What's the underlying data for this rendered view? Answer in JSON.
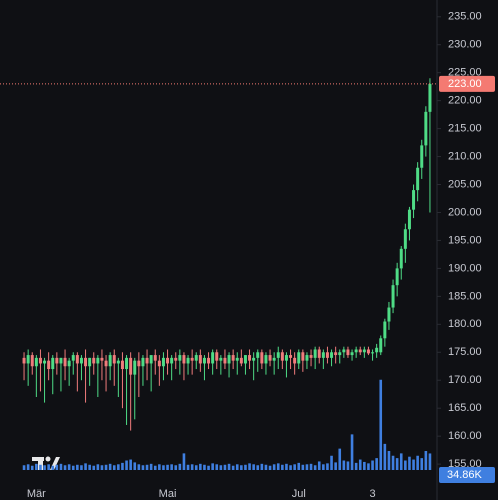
{
  "chart_data": {
    "type": "candlestick",
    "categories": [
      null,
      null,
      null,
      "Mär",
      null,
      null,
      null,
      null,
      null,
      null,
      null,
      null,
      null,
      null,
      null,
      null,
      null,
      null,
      null,
      null,
      null,
      null,
      null,
      null,
      null,
      null,
      null,
      null,
      null,
      null,
      null,
      null,
      null,
      null,
      null,
      "Mai",
      null,
      null,
      null,
      null,
      null,
      null,
      null,
      null,
      null,
      null,
      null,
      null,
      null,
      null,
      null,
      null,
      null,
      null,
      null,
      null,
      null,
      null,
      null,
      null,
      null,
      null,
      null,
      null,
      null,
      null,
      null,
      "Jul",
      null,
      null,
      null,
      null,
      null,
      null,
      null,
      null,
      null,
      null,
      null,
      null,
      null,
      null,
      null,
      null,
      null,
      "3",
      null,
      null,
      null,
      null,
      null,
      null,
      null,
      null,
      null,
      null,
      null,
      null,
      null,
      null
    ],
    "ohlcv": [
      [
        174,
        175,
        170,
        173,
        10
      ],
      [
        173,
        175.5,
        169,
        174.5,
        12
      ],
      [
        174.5,
        175,
        171,
        172.5,
        9
      ],
      [
        172.5,
        174.5,
        167,
        174,
        13
      ],
      [
        174,
        175.5,
        168,
        173,
        11
      ],
      [
        173,
        174,
        166,
        173.5,
        10
      ],
      [
        173.5,
        175,
        170,
        172,
        12
      ],
      [
        172,
        174.5,
        167.5,
        174,
        9
      ],
      [
        174,
        175,
        171,
        173,
        11
      ],
      [
        173,
        174,
        168,
        174,
        13
      ],
      [
        174,
        175.5,
        170,
        172.5,
        10
      ],
      [
        172.5,
        174,
        169,
        173.5,
        12
      ],
      [
        173.5,
        175,
        171,
        174.5,
        9
      ],
      [
        174.5,
        175,
        168,
        173,
        11
      ],
      [
        173,
        174.5,
        170,
        174,
        10
      ],
      [
        174,
        175.5,
        166,
        172.5,
        14
      ],
      [
        172.5,
        174,
        169,
        174,
        11
      ],
      [
        174,
        175,
        171,
        173,
        9
      ],
      [
        173,
        174.5,
        167,
        174,
        12
      ],
      [
        174,
        175.5,
        170,
        173.5,
        10
      ],
      [
        173.5,
        174.5,
        168,
        172.5,
        11
      ],
      [
        172.5,
        175,
        170,
        174.5,
        13
      ],
      [
        174.5,
        175.5,
        169,
        173,
        10
      ],
      [
        173,
        174,
        167,
        173.5,
        12
      ],
      [
        173.5,
        175,
        165,
        172,
        15
      ],
      [
        172,
        174.5,
        162,
        174,
        20
      ],
      [
        174,
        175,
        161,
        171,
        22
      ],
      [
        171,
        174,
        163,
        173.5,
        16
      ],
      [
        173.5,
        175,
        167,
        172.5,
        12
      ],
      [
        172.5,
        174.5,
        169,
        174,
        10
      ],
      [
        174,
        175.5,
        170,
        173,
        11
      ],
      [
        173,
        174,
        168,
        174.5,
        13
      ],
      [
        174.5,
        175.5,
        171,
        173.5,
        9
      ],
      [
        173.5,
        174.5,
        169,
        172.5,
        12
      ],
      [
        172.5,
        175,
        170,
        174,
        10
      ],
      [
        174,
        175.5,
        171,
        173,
        11
      ],
      [
        173,
        174.5,
        170,
        174,
        12
      ],
      [
        174,
        175,
        172,
        173.5,
        10
      ],
      [
        173.5,
        175.5,
        171,
        174.5,
        13
      ],
      [
        174.5,
        175,
        170,
        173,
        35
      ],
      [
        173,
        174.5,
        171,
        174,
        11
      ],
      [
        174,
        175.5,
        171,
        173.5,
        12
      ],
      [
        173.5,
        175,
        172,
        174.5,
        10
      ],
      [
        174.5,
        175.5,
        171.5,
        173,
        13
      ],
      [
        173,
        174.5,
        170,
        174,
        11
      ],
      [
        174,
        175,
        172,
        173,
        9
      ],
      [
        173,
        175.5,
        171,
        175,
        14
      ],
      [
        175,
        175.5,
        172,
        173.5,
        12
      ],
      [
        173.5,
        174.5,
        171,
        174,
        10
      ],
      [
        174,
        175.5,
        172,
        173,
        11
      ],
      [
        173,
        175,
        170.5,
        174.5,
        13
      ],
      [
        174.5,
        175.5,
        172,
        173.5,
        9
      ],
      [
        173.5,
        175,
        171,
        174,
        12
      ],
      [
        174,
        175.5,
        172.5,
        173,
        10
      ],
      [
        173,
        174.5,
        171,
        174.5,
        11
      ],
      [
        174.5,
        175.5,
        172,
        173.5,
        14
      ],
      [
        173.5,
        175,
        170,
        174,
        12
      ],
      [
        174,
        175.5,
        171.5,
        175,
        10
      ],
      [
        175,
        175.5,
        172,
        173,
        13
      ],
      [
        173,
        175,
        171,
        174.5,
        11
      ],
      [
        174.5,
        175.5,
        172.5,
        173.5,
        9
      ],
      [
        173.5,
        175,
        171,
        174,
        12
      ],
      [
        174,
        176,
        172,
        175,
        14
      ],
      [
        175,
        175.5,
        172,
        173.5,
        11
      ],
      [
        173.5,
        175,
        170.5,
        174.5,
        13
      ],
      [
        174.5,
        175.5,
        172,
        174,
        10
      ],
      [
        174,
        175,
        171,
        173,
        12
      ],
      [
        173,
        175.5,
        172,
        175,
        15
      ],
      [
        175,
        175.5,
        171.5,
        173.5,
        11
      ],
      [
        173.5,
        175,
        172,
        174.5,
        12
      ],
      [
        174.5,
        175.5,
        172.5,
        174,
        13
      ],
      [
        174,
        176,
        172,
        175.5,
        10
      ],
      [
        175.5,
        176,
        173,
        174,
        18
      ],
      [
        174,
        175.5,
        172,
        175,
        12
      ],
      [
        175,
        176,
        173,
        174,
        14
      ],
      [
        174,
        175.5,
        172.5,
        175,
        30
      ],
      [
        175,
        176,
        173,
        174.5,
        16
      ],
      [
        174.5,
        175.5,
        173,
        175,
        45
      ],
      [
        175,
        176,
        174,
        175.5,
        20
      ],
      [
        175.5,
        176,
        174,
        174.5,
        18
      ],
      [
        174.5,
        175.5,
        173.5,
        175,
        75
      ],
      [
        175,
        176,
        174,
        175.5,
        15
      ],
      [
        175.5,
        176,
        174.5,
        175,
        22
      ],
      [
        175,
        176,
        174,
        175.5,
        17
      ],
      [
        175.5,
        176,
        174.5,
        174.8,
        14
      ],
      [
        174.8,
        175.5,
        173.5,
        175,
        20
      ],
      [
        175,
        176.5,
        174,
        175.8,
        25
      ],
      [
        175,
        178,
        174.5,
        177.5,
        190
      ],
      [
        177.5,
        181,
        176,
        180.5,
        55
      ],
      [
        180.5,
        184,
        179,
        183,
        40
      ],
      [
        183,
        188,
        182,
        187,
        30
      ],
      [
        187,
        191,
        185,
        190,
        25
      ],
      [
        190,
        194,
        188,
        193.5,
        35
      ],
      [
        193.5,
        198,
        191,
        197,
        20
      ],
      [
        197,
        201,
        195,
        200.5,
        28
      ],
      [
        200.5,
        205,
        199,
        204,
        22
      ],
      [
        204,
        209,
        202,
        208,
        30
      ],
      [
        208,
        213,
        206,
        212,
        25
      ],
      [
        212,
        219,
        210,
        218,
        40
      ],
      [
        218,
        224,
        200,
        223,
        34.86
      ]
    ],
    "ylim": [
      151.8,
      238.0
    ],
    "yticks": [
      {
        "value": 155,
        "label": "155.00"
      },
      {
        "value": 160,
        "label": "160.00"
      },
      {
        "value": 165,
        "label": "165.00"
      },
      {
        "value": 170,
        "label": "170.00"
      },
      {
        "value": 175,
        "label": "175.00"
      },
      {
        "value": 180,
        "label": "180.00"
      },
      {
        "value": 185,
        "label": "185.00"
      },
      {
        "value": 190,
        "label": "190.00"
      },
      {
        "value": 195,
        "label": "195.00"
      },
      {
        "value": 200,
        "label": "200.00"
      },
      {
        "value": 205,
        "label": "205.00"
      },
      {
        "value": 210,
        "label": "210.00"
      },
      {
        "value": 215,
        "label": "215.00"
      },
      {
        "value": 220,
        "label": "220.00"
      },
      {
        "value": 225,
        "label": "225.00"
      },
      {
        "value": 230,
        "label": "230.00"
      },
      {
        "value": 235,
        "label": "235.00"
      }
    ],
    "volume_lim": [
      0,
      200
    ],
    "last_price": {
      "value": 223,
      "label": "223.00"
    },
    "last_volume_label": "34.86K",
    "up_color": "#4fdc86",
    "down_color": "#f07c7c",
    "volume_color": "#3f7fe0",
    "price_line_color": "#f47a72",
    "grid": false
  }
}
